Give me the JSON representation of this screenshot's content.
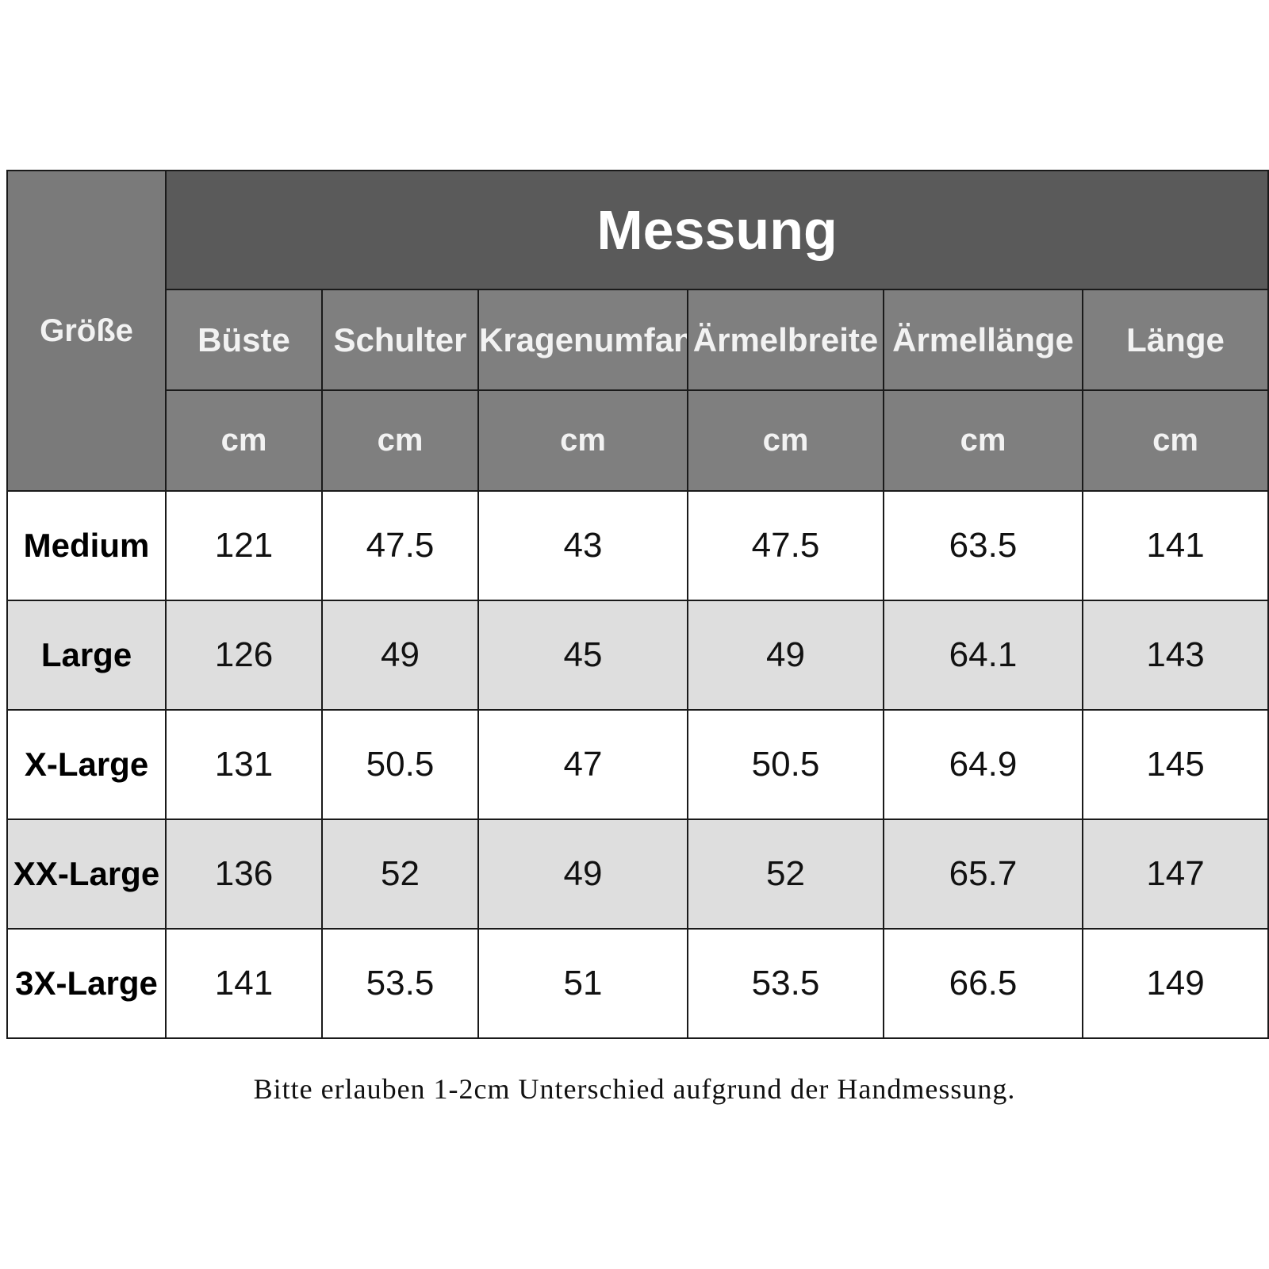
{
  "table": {
    "size_header": "Größe",
    "group_header": "Messung",
    "columns": [
      {
        "label": "Büste",
        "unit": "cm"
      },
      {
        "label": "Schulter",
        "unit": "cm"
      },
      {
        "label": "Kragenumfang",
        "unit": "cm"
      },
      {
        "label": "Ärmelbreite",
        "unit": "cm"
      },
      {
        "label": "Ärmellänge",
        "unit": "cm"
      },
      {
        "label": "Länge",
        "unit": "cm"
      }
    ],
    "rows": [
      {
        "size": "Medium",
        "values": [
          "121",
          "47.5",
          "43",
          "47.5",
          "63.5",
          "141"
        ]
      },
      {
        "size": "Large",
        "values": [
          "126",
          "49",
          "45",
          "49",
          "64.1",
          "143"
        ]
      },
      {
        "size": "X-Large",
        "values": [
          "131",
          "50.5",
          "47",
          "50.5",
          "64.9",
          "145"
        ]
      },
      {
        "size": "XX-Large",
        "values": [
          "136",
          "52",
          "49",
          "52",
          "65.7",
          "147"
        ]
      },
      {
        "size": "3X-Large",
        "values": [
          "141",
          "53.5",
          "51",
          "53.5",
          "66.5",
          "149"
        ]
      }
    ]
  },
  "footnote": "Bitte erlauben 1-2cm Unterschied aufgrund der Handmessung.",
  "colors": {
    "header_dark": "#5a5a5a",
    "header_mid": "#7f7f7f",
    "row_alt": "#dedede",
    "border": "#1a1a1a"
  }
}
